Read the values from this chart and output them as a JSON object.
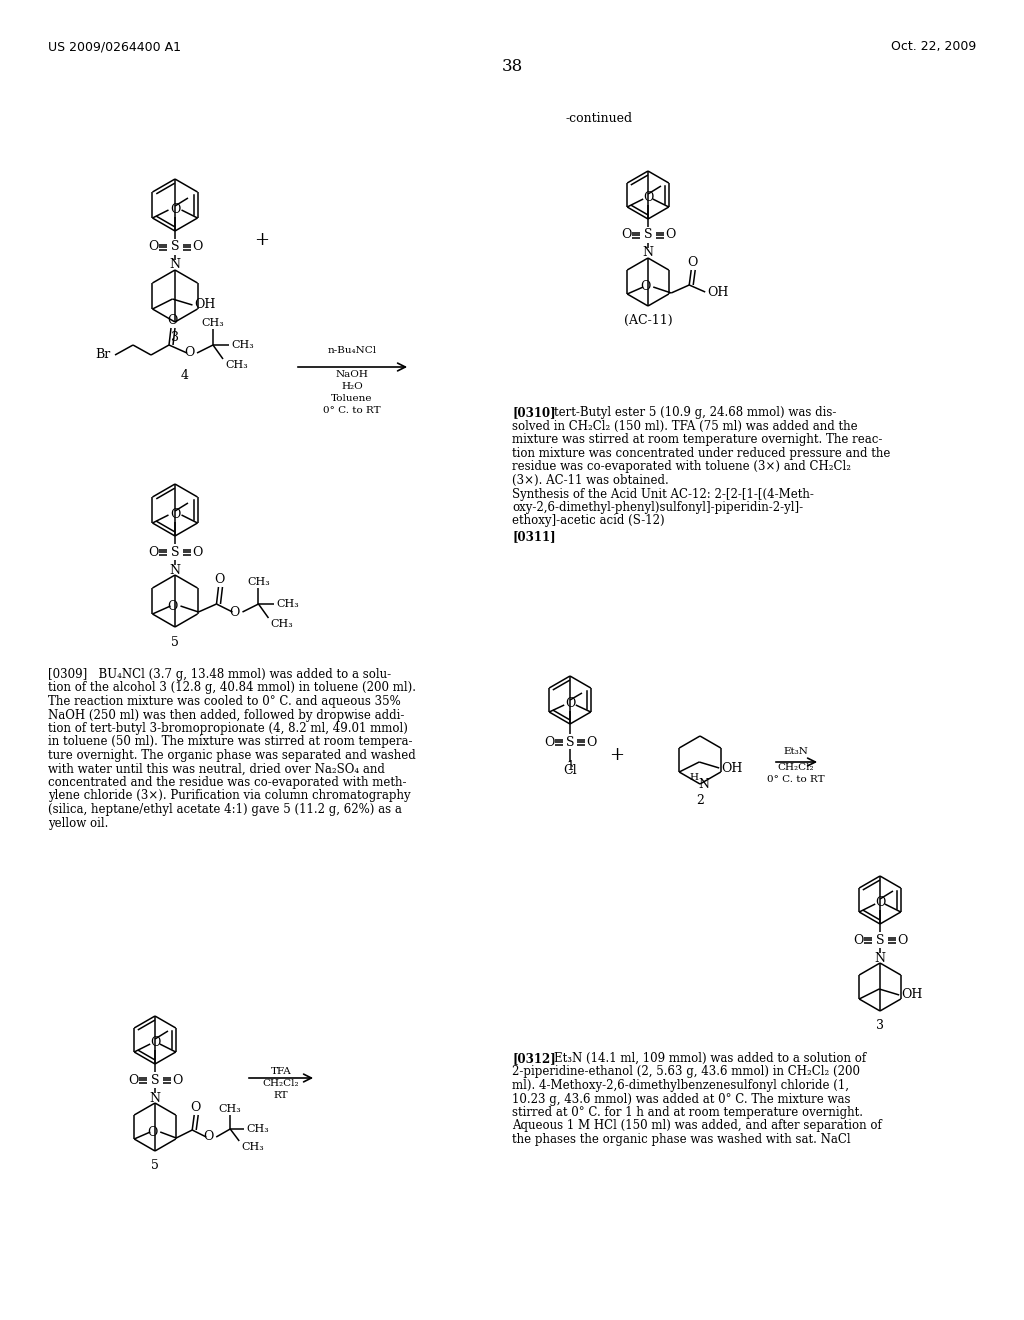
{
  "bg": "#ffffff",
  "header_left": "US 2009/0264400 A1",
  "header_right": "Oct. 22, 2009",
  "page_num": "38"
}
